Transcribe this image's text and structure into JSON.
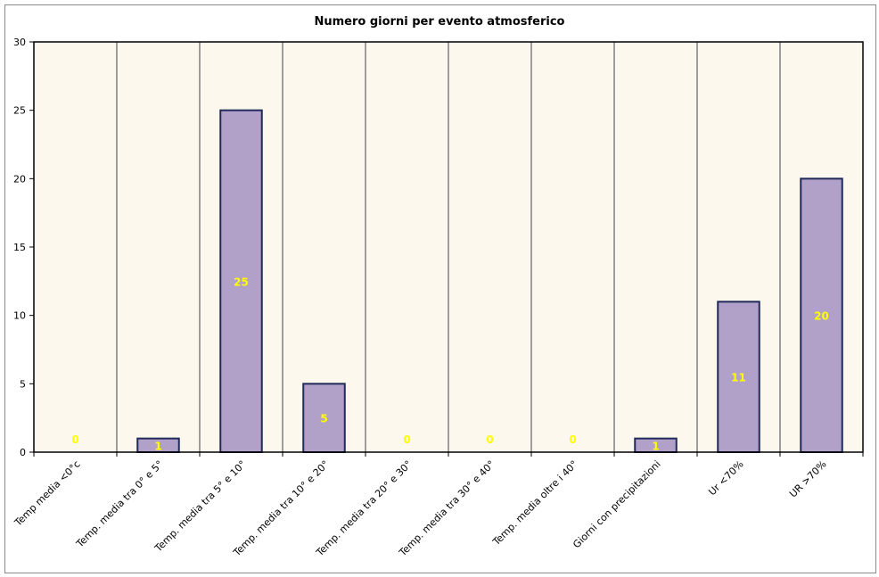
{
  "chart_data": {
    "type": "bar",
    "title": "Numero giorni per evento atmosferico",
    "categories": [
      "Temp media <0°c",
      "Temp. media tra 0° e 5°",
      "Temp. media tra 5° e 10°",
      "Temp. media tra 10° e 20°",
      "Temp. media tra 20° e 30°",
      "Temp. media tra 30° e 40°",
      "Temp. media oltre i 40°",
      "Giorni con precipitazioni",
      "Ur <70%",
      "UR >70%"
    ],
    "values": [
      0,
      1,
      25,
      5,
      0,
      0,
      0,
      1,
      11,
      20
    ],
    "ylim": [
      0,
      30
    ],
    "yticks": [
      0,
      5,
      10,
      15,
      20,
      25,
      30
    ],
    "grid": "vertical lines between categories",
    "legend": "none",
    "colors": {
      "bar_fill": "#b1a0c7",
      "bar_stroke": "#1f2a5a",
      "plot_background": "#fdf8ee",
      "data_label": "#ffff00",
      "gridline": "#808080"
    }
  }
}
